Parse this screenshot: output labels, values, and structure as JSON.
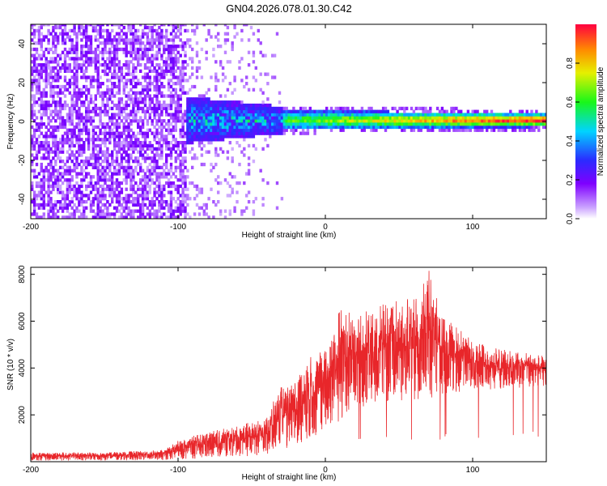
{
  "title": "GN04.2026.078.01.30.C42",
  "colors": {
    "series": "#e8262a",
    "spectral_low": "#ffffff",
    "spectral_mid": "#7f00ff",
    "spectral_high": "#ff0000"
  },
  "chart_data": [
    {
      "type": "heatmap",
      "xlabel": "Height of straight line (km)",
      "ylabel": "Frequency (Hz)",
      "xlim": [
        -200,
        150
      ],
      "ylim": [
        -50,
        50
      ],
      "xticks": [
        -200,
        -100,
        0,
        100
      ],
      "yticks": [
        -40,
        -20,
        0,
        20,
        40
      ],
      "grid": false,
      "colorbar": {
        "label": "Normalized spectral amplitude",
        "range": [
          0,
          1
        ],
        "ticks": [
          "0.0",
          "0.2",
          "0.4",
          "0.6",
          "0.8"
        ],
        "colormap": "rainbow (white → violet → blue → cyan → green → yellow → red)"
      },
      "description_points": [
        {
          "x_range": [
            -200,
            -95
          ],
          "freq_spread": [
            -50,
            50
          ],
          "amplitude": 0.05
        },
        {
          "x_range": [
            -95,
            -30
          ],
          "freq_spread": [
            -10,
            10
          ],
          "amplitude": 0.2
        },
        {
          "x_range": [
            -30,
            150
          ],
          "freq_spread": [
            -4,
            4
          ],
          "amplitude_peak": 0.95,
          "peak_freq": 0
        }
      ]
    },
    {
      "type": "line",
      "xlabel": "Height of straight line (km)",
      "ylabel": "SNR (10 * v/v)",
      "xlim": [
        -200,
        150
      ],
      "ylim": [
        0,
        8300
      ],
      "xticks": [
        -200,
        -100,
        0,
        100
      ],
      "yticks": [
        2000,
        4000,
        6000,
        8000
      ],
      "grid": false,
      "envelope": [
        {
          "x": -200,
          "low": 50,
          "high": 400
        },
        {
          "x": -150,
          "low": 50,
          "high": 400
        },
        {
          "x": -110,
          "low": 80,
          "high": 500
        },
        {
          "x": -100,
          "low": 100,
          "high": 900
        },
        {
          "x": -80,
          "low": 150,
          "high": 1300
        },
        {
          "x": -60,
          "low": 200,
          "high": 1500
        },
        {
          "x": -40,
          "low": 300,
          "high": 2000
        },
        {
          "x": -30,
          "low": 500,
          "high": 3200
        },
        {
          "x": -20,
          "low": 700,
          "high": 3600
        },
        {
          "x": -10,
          "low": 900,
          "high": 4500
        },
        {
          "x": 0,
          "low": 1300,
          "high": 4800
        },
        {
          "x": 10,
          "low": 1700,
          "high": 6700
        },
        {
          "x": 20,
          "low": 2300,
          "high": 6200
        },
        {
          "x": 40,
          "low": 2500,
          "high": 6800
        },
        {
          "x": 60,
          "low": 2600,
          "high": 7000
        },
        {
          "x": 70,
          "low": 2700,
          "high": 8300
        },
        {
          "x": 80,
          "low": 2900,
          "high": 6200
        },
        {
          "x": 100,
          "low": 3000,
          "high": 5200
        },
        {
          "x": 120,
          "low": 3100,
          "high": 4800
        },
        {
          "x": 150,
          "low": 3200,
          "high": 4500
        }
      ]
    }
  ]
}
